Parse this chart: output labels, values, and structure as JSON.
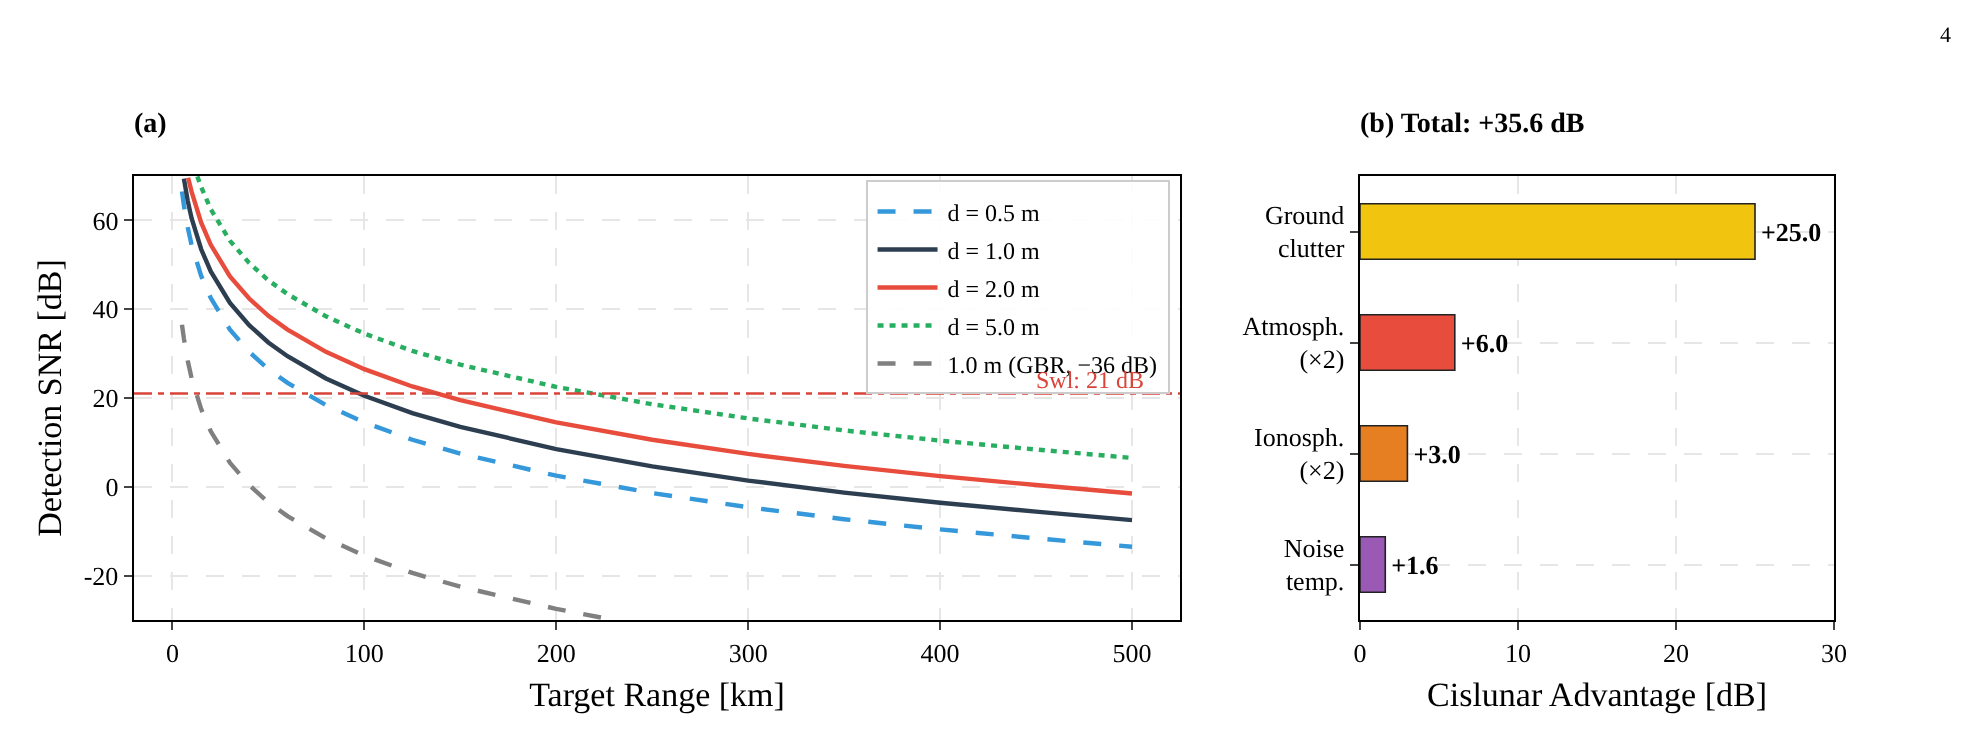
{
  "chart_data": [
    {
      "type": "line",
      "title": "(a)",
      "xlabel": "Target Range [km]",
      "ylabel": "Detection SNR [dB]",
      "xlim": [
        -20,
        525
      ],
      "xticks": [
        0,
        100,
        200,
        300,
        400,
        500
      ],
      "ylim": [
        -30,
        70
      ],
      "yticks": [
        -20,
        0,
        20,
        40,
        60
      ],
      "grid": true,
      "legend": "top right",
      "marker": "none",
      "series": [
        {
          "name": "d = 0.5 m",
          "color": "#3498db",
          "line_style": "dashed",
          "x": [
            5,
            6,
            8,
            10,
            15,
            20,
            30,
            40,
            50,
            60,
            80,
            100,
            125,
            150,
            200,
            250,
            300,
            350,
            400,
            450,
            500
          ],
          "values": [
            66.5,
            63.4,
            58.4,
            54.5,
            47.5,
            42.5,
            35.4,
            30.4,
            26.5,
            23.4,
            18.4,
            14.5,
            10.6,
            7.5,
            2.5,
            -1.4,
            -4.6,
            -7.3,
            -9.6,
            -11.6,
            -13.5
          ]
        },
        {
          "name": "d = 1.0 m",
          "color": "#2c3e50",
          "line_style": "solid",
          "x": [
            6,
            8,
            10,
            15,
            20,
            30,
            40,
            50,
            60,
            80,
            100,
            125,
            150,
            200,
            250,
            300,
            350,
            400,
            450,
            500
          ],
          "values": [
            69.4,
            64.4,
            60.5,
            53.5,
            48.5,
            41.4,
            36.4,
            32.5,
            29.4,
            24.4,
            20.5,
            16.6,
            13.5,
            8.5,
            4.6,
            1.4,
            -1.3,
            -3.6,
            -5.6,
            -7.5
          ]
        },
        {
          "name": "d = 2.0 m",
          "color": "#e74c3c",
          "line_style": "solid",
          "x": [
            8.2,
            10,
            15,
            20,
            30,
            40,
            50,
            60,
            80,
            100,
            125,
            150,
            200,
            250,
            300,
            350,
            400,
            450,
            500
          ],
          "values": [
            69.6,
            66.5,
            59.5,
            54.5,
            47.4,
            42.4,
            38.5,
            35.4,
            30.4,
            26.5,
            22.6,
            19.5,
            14.5,
            10.6,
            7.4,
            4.7,
            2.4,
            0.4,
            -1.5
          ]
        },
        {
          "name": "d = 5.0 m",
          "color": "#27ae60",
          "line_style": "dotted",
          "x": [
            13,
            15,
            20,
            30,
            40,
            50,
            60,
            80,
            100,
            125,
            150,
            200,
            250,
            300,
            350,
            400,
            450,
            500
          ],
          "values": [
            69.9,
            67.5,
            62.5,
            55.4,
            50.4,
            46.5,
            43.4,
            38.4,
            34.5,
            30.6,
            27.5,
            22.5,
            18.6,
            15.4,
            12.7,
            10.4,
            8.4,
            6.5
          ]
        },
        {
          "name": "1.0 m (GBR, −36 dB)",
          "color": "#808080",
          "line_style": "dashed",
          "x": [
            5,
            6,
            8,
            10,
            15,
            20,
            30,
            40,
            50,
            60,
            80,
            100,
            125,
            150,
            200,
            230
          ],
          "values": [
            36.5,
            33.4,
            28.4,
            24.5,
            17.5,
            12.5,
            5.4,
            0.4,
            -3.5,
            -6.6,
            -11.6,
            -15.5,
            -19.4,
            -22.5,
            -27.5,
            -30
          ]
        }
      ],
      "ref_lines": [
        {
          "axis": "y",
          "value": 21,
          "label": "Swl: 21 dB",
          "color": "#d9443a",
          "line_style": "dashdot"
        }
      ]
    },
    {
      "type": "bar",
      "orientation": "horizontal",
      "title": "(b) Total: +35.6 dB",
      "xlabel": "Cislunar Advantage [dB]",
      "xlim": [
        0,
        30
      ],
      "xticks": [
        0,
        10,
        20,
        30
      ],
      "grid": true,
      "categories": [
        "Ground\nclutter",
        "Atmosph.\n(×2)",
        "Ionosph.\n(×2)",
        "Noise\ntemp."
      ],
      "values": [
        25.0,
        6.0,
        3.0,
        1.6
      ],
      "colors": [
        "#f1c40f",
        "#e74c3c",
        "#e67e22",
        "#9b59b6"
      ],
      "value_labels": [
        "+25.0",
        "+6.0",
        "+3.0",
        "+1.6"
      ],
      "annotations": [
        "4"
      ]
    }
  ]
}
